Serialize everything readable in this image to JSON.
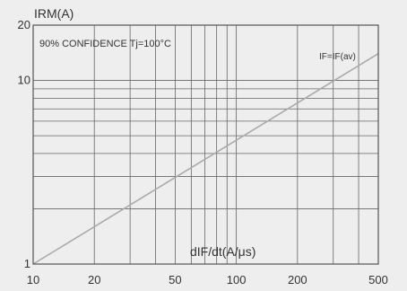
{
  "chart_data": {
    "type": "line",
    "title": "",
    "xlabel": "dIF/dt(A/μs)",
    "ylabel": "IRM(A)",
    "x_scale": "log",
    "y_scale": "log",
    "xlim": [
      10,
      500
    ],
    "ylim": [
      1,
      20
    ],
    "x_tick_labels": [
      {
        "value": 10,
        "label": "10"
      },
      {
        "value": 20,
        "label": "20"
      },
      {
        "value": 50,
        "label": "50"
      },
      {
        "value": 100,
        "label": "100"
      },
      {
        "value": 200,
        "label": "200"
      },
      {
        "value": 500,
        "label": "500"
      }
    ],
    "y_tick_labels": [
      {
        "value": 1,
        "label": "1"
      },
      {
        "value": 10,
        "label": "10"
      },
      {
        "value": 20,
        "label": "20"
      }
    ],
    "grid": true,
    "annotations": [
      {
        "text": "90% CONFIDENCE Tj=100°C"
      },
      {
        "text": "IF=IF(av)"
      }
    ],
    "series": [
      {
        "name": "IF=IF(av)",
        "color": "#aaaaaa",
        "x": [
          10,
          500
        ],
        "y": [
          1.0,
          14.0
        ]
      }
    ]
  }
}
